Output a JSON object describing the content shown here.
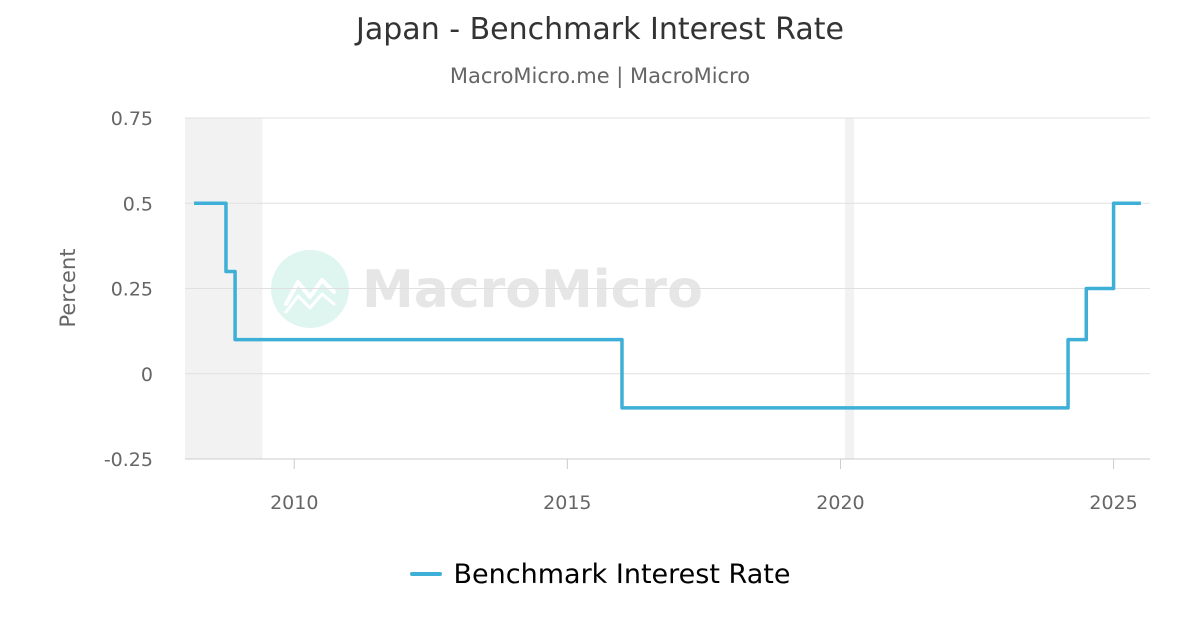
{
  "title": "Japan - Benchmark Interest Rate",
  "subtitle": "MacroMicro.me | MacroMicro",
  "watermark": "MacroMicro",
  "colors": {
    "series": "#3eafd6",
    "grid": "#e0e0e0",
    "recession": "#f2f2f2",
    "axis_text": "#666666",
    "watermark_text": "#e6e6e6",
    "watermark_circle": "#dff6f0"
  },
  "chart_data": {
    "type": "line",
    "title": "Japan - Benchmark Interest Rate",
    "subtitle": "MacroMicro.me | MacroMicro",
    "ylabel": "Percent",
    "xlabel": "",
    "xlim": [
      "2008-01",
      "2025-09"
    ],
    "ylim": [
      -0.25,
      0.75
    ],
    "x_ticks": [
      "2010",
      "2015",
      "2020",
      "2025"
    ],
    "y_ticks": [
      "0.75",
      "0.5",
      "0.25",
      "0",
      "-0.25"
    ],
    "grid": true,
    "legend_position": "bottom",
    "recession_bands": [
      {
        "start": "2008-01",
        "end": "2009-06"
      },
      {
        "start": "2020-02",
        "end": "2020-04"
      }
    ],
    "series": [
      {
        "name": "Benchmark Interest Rate",
        "step": true,
        "points": [
          {
            "x": "2008-03",
            "y": 0.5
          },
          {
            "x": "2008-10",
            "y": 0.3
          },
          {
            "x": "2008-12",
            "y": 0.1
          },
          {
            "x": "2016-01",
            "y": -0.1
          },
          {
            "x": "2024-03",
            "y": 0.1
          },
          {
            "x": "2024-07",
            "y": 0.25
          },
          {
            "x": "2025-01",
            "y": 0.5
          },
          {
            "x": "2025-07",
            "y": 0.5
          }
        ]
      }
    ]
  },
  "legend": {
    "label": "Benchmark Interest Rate"
  }
}
